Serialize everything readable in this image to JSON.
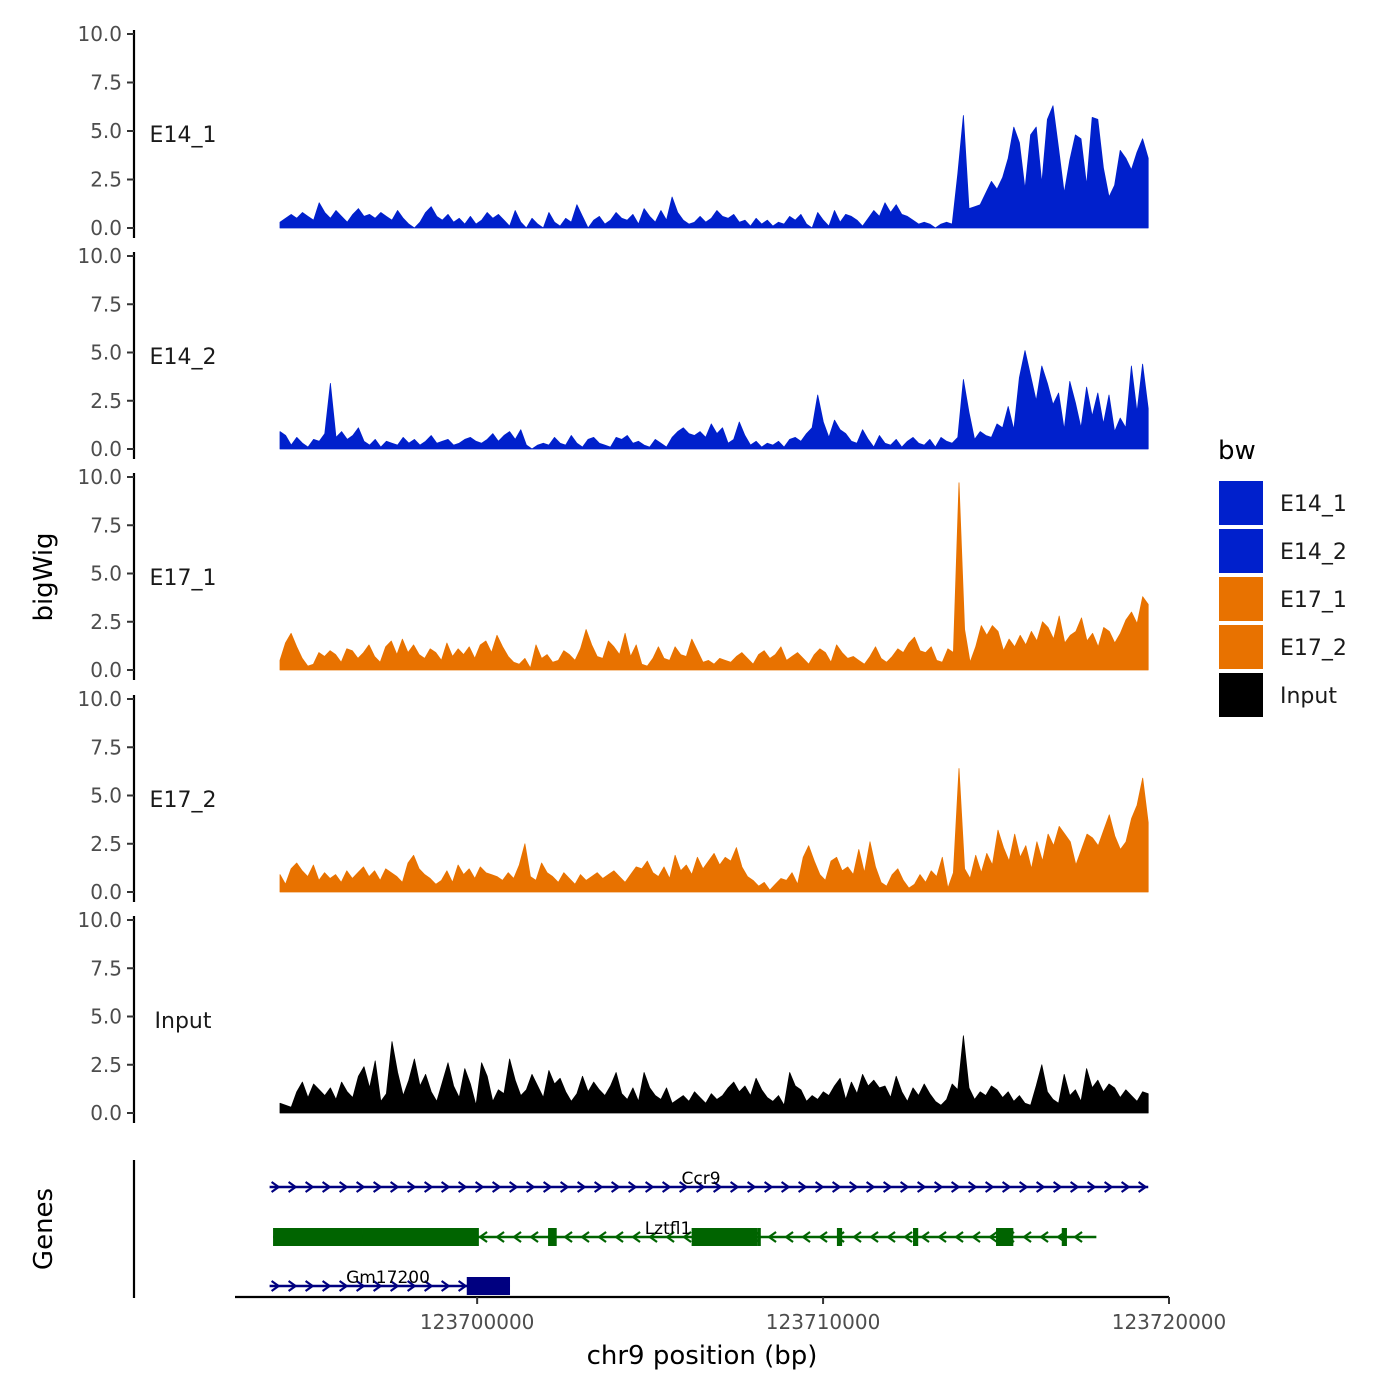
{
  "chart_data": {
    "type": "area",
    "ylabel": "bigWig",
    "xlabel": "chr9 position (bp)",
    "xlim": [
      123693000,
      123720000
    ],
    "x_ticks": [
      "123700000",
      "123710000",
      "123720000"
    ],
    "x_tick_values": [
      123700000,
      123710000,
      123720000
    ],
    "ylim": [
      0,
      10
    ],
    "y_ticks": [
      "0.0",
      "2.5",
      "5.0",
      "7.5",
      "10.0"
    ],
    "y_tick_values": [
      0,
      2.5,
      5,
      7.5,
      10
    ],
    "legend": {
      "title": "bw",
      "position": "right",
      "entries": [
        {
          "name": "E14_1",
          "color": "#0020cc"
        },
        {
          "name": "E14_2",
          "color": "#0020cc"
        },
        {
          "name": "E17_1",
          "color": "#e87200"
        },
        {
          "name": "E17_2",
          "color": "#e87200"
        },
        {
          "name": "Input",
          "color": "#000000"
        }
      ]
    },
    "x_start": 123694300,
    "x_end": 123719400,
    "series": [
      {
        "name": "E14_1",
        "color": "#0020cc",
        "values": [
          0.3,
          0.5,
          0.7,
          0.5,
          0.8,
          0.6,
          0.4,
          1.3,
          0.8,
          0.5,
          0.9,
          0.6,
          0.3,
          0.7,
          1.0,
          0.6,
          0.7,
          0.5,
          0.8,
          0.6,
          0.4,
          0.9,
          0.5,
          0.2,
          0,
          0.3,
          0.8,
          1.1,
          0.6,
          0.4,
          0.7,
          0.3,
          0.5,
          0.2,
          0.6,
          0.2,
          0.4,
          0.8,
          0.5,
          0.7,
          0.4,
          0.1,
          0.9,
          0.3,
          0,
          0.5,
          0.2,
          0,
          0.8,
          0.3,
          0.1,
          0.5,
          0.3,
          1.2,
          0.6,
          0,
          0.4,
          0.6,
          0.2,
          0.4,
          0.8,
          0.5,
          0.4,
          0.7,
          0.2,
          1.0,
          0.6,
          0.3,
          0.9,
          0.4,
          1.6,
          0.8,
          0.4,
          0.2,
          0.3,
          0.6,
          0.3,
          0.5,
          0.9,
          0.6,
          0.5,
          0.7,
          0.3,
          0.4,
          0.1,
          0.5,
          0.2,
          0.4,
          0.1,
          0.3,
          0.2,
          0.6,
          0.4,
          0.7,
          0.2,
          0,
          0.8,
          0.4,
          0.1,
          0.9,
          0.3,
          0.7,
          0.6,
          0.4,
          0.1,
          0.5,
          0.9,
          0.6,
          1.3,
          0.8,
          1.2,
          0.7,
          0.6,
          0.4,
          0.2,
          0.3,
          0.2,
          0,
          0.2,
          0.3,
          0.2,
          2.8,
          5.8,
          1.0,
          1.1,
          1.2,
          1.8,
          2.4,
          2.0,
          2.6,
          3.6,
          5.2,
          4.4,
          2.0,
          4.8,
          5.2,
          2.3,
          5.6,
          6.3,
          4.1,
          1.8,
          3.5,
          4.8,
          4.6,
          2.2,
          5.7,
          5.6,
          3.1,
          1.6,
          2.2,
          4.0,
          3.6,
          3.0,
          3.9,
          4.6,
          3.6
        ]
      },
      {
        "name": "E14_2",
        "color": "#0020cc",
        "values": [
          0.9,
          0.7,
          0.2,
          0.6,
          0.3,
          0.1,
          0.5,
          0.4,
          0.8,
          3.4,
          0.6,
          0.9,
          0.5,
          0.7,
          1.1,
          0.4,
          0.2,
          0.5,
          0.1,
          0.4,
          0.3,
          0.2,
          0.6,
          0.3,
          0.5,
          0.2,
          0.4,
          0.7,
          0.3,
          0.4,
          0.5,
          0.2,
          0.3,
          0.5,
          0.6,
          0.4,
          0.3,
          0.5,
          0.8,
          0.4,
          0.7,
          0.9,
          0.5,
          1.0,
          0.2,
          0,
          0.2,
          0.3,
          0.2,
          0.6,
          0.3,
          0.2,
          0.7,
          0.3,
          0.1,
          0.5,
          0.6,
          0.3,
          0.2,
          0.1,
          0.6,
          0.5,
          0.7,
          0.3,
          0.4,
          0.2,
          0.1,
          0.5,
          0.3,
          0.1,
          0.6,
          0.9,
          1.1,
          0.8,
          0.7,
          0.9,
          0.6,
          1.3,
          0.8,
          1.1,
          0.3,
          0.5,
          1.4,
          0.7,
          0.2,
          0.4,
          0.1,
          0.3,
          0.2,
          0.4,
          0.1,
          0.5,
          0.6,
          0.4,
          0.8,
          1.1,
          2.8,
          1.4,
          0.6,
          1.5,
          1.0,
          0.8,
          0.4,
          0.3,
          1.0,
          0.5,
          0.1,
          0.7,
          0.3,
          0.2,
          0.5,
          0.1,
          0.4,
          0.6,
          0.3,
          0.2,
          0.5,
          0.1,
          0.6,
          0.4,
          0.3,
          0.6,
          3.6,
          1.9,
          0.5,
          0.9,
          0.7,
          0.6,
          1.3,
          1.1,
          2.2,
          1.0,
          3.7,
          5.1,
          3.8,
          2.5,
          4.3,
          3.4,
          2.3,
          2.9,
          1.0,
          3.5,
          2.4,
          1.1,
          3.2,
          1.7,
          2.9,
          1.3,
          2.8,
          0.9,
          1.6,
          1.1,
          4.3,
          1.9,
          4.4,
          2.1
        ]
      },
      {
        "name": "E17_1",
        "color": "#e87200",
        "values": [
          0.5,
          1.4,
          1.9,
          1.2,
          0.6,
          0.2,
          0.3,
          0.9,
          0.7,
          1.0,
          0.8,
          0.4,
          1.1,
          1.0,
          0.6,
          0.9,
          1.3,
          0.7,
          0.4,
          1.2,
          1.5,
          0.8,
          1.6,
          0.9,
          1.3,
          0.8,
          0.6,
          1.1,
          0.9,
          0.5,
          1.4,
          0.7,
          1.1,
          0.8,
          1.2,
          0.6,
          1.3,
          1.5,
          0.9,
          1.8,
          1.2,
          0.7,
          0.4,
          0.3,
          0.6,
          0.1,
          1.3,
          0.6,
          0.8,
          0.4,
          0.5,
          1.0,
          0.8,
          0.5,
          1.1,
          2.1,
          1.3,
          0.7,
          0.6,
          1.5,
          1.2,
          0.8,
          1.9,
          0.7,
          1.3,
          0.3,
          0.2,
          0.6,
          1.2,
          0.6,
          0.5,
          1.2,
          0.8,
          0.7,
          1.6,
          1.0,
          0.4,
          0.5,
          0.3,
          0.6,
          0.5,
          0.4,
          0.7,
          0.9,
          0.6,
          0.3,
          0.8,
          1.0,
          0.6,
          0.8,
          1.2,
          0.5,
          0.7,
          0.9,
          0.6,
          0.3,
          0.8,
          1.1,
          0.9,
          0.4,
          1.3,
          0.9,
          0.6,
          0.7,
          0.5,
          0.3,
          0.7,
          1.2,
          0.6,
          0.4,
          0.7,
          1.1,
          0.9,
          1.4,
          1.7,
          1.0,
          0.9,
          1.2,
          0.5,
          0.4,
          1.1,
          0.9,
          9.7,
          2.1,
          0.4,
          1.2,
          2.3,
          1.8,
          2.3,
          2.0,
          1.0,
          1.6,
          1.2,
          1.8,
          1.3,
          2.0,
          1.5,
          2.5,
          2.2,
          1.6,
          2.8,
          1.4,
          1.8,
          2.0,
          2.7,
          1.5,
          1.9,
          1.2,
          2.2,
          2.0,
          1.4,
          1.9,
          2.6,
          3.0,
          2.4,
          3.8,
          3.4
        ]
      },
      {
        "name": "E17_2",
        "color": "#e87200",
        "values": [
          0.9,
          0.4,
          1.2,
          1.5,
          1.1,
          0.8,
          1.4,
          0.6,
          1.0,
          0.7,
          0.9,
          0.5,
          1.1,
          0.7,
          1.0,
          1.3,
          0.8,
          1.1,
          0.6,
          1.2,
          1.0,
          0.8,
          0.5,
          1.5,
          1.9,
          1.2,
          0.9,
          0.7,
          0.4,
          0.6,
          1.1,
          0.5,
          1.4,
          0.9,
          1.2,
          0.7,
          1.3,
          1.0,
          0.9,
          0.8,
          0.6,
          1.0,
          0.7,
          1.4,
          2.5,
          0.8,
          0.6,
          1.5,
          1.0,
          0.8,
          0.5,
          1.0,
          0.7,
          0.4,
          0.9,
          0.6,
          0.8,
          1.0,
          0.7,
          0.9,
          1.1,
          0.8,
          0.5,
          0.9,
          1.3,
          1.2,
          1.6,
          1.0,
          0.8,
          1.3,
          0.7,
          1.9,
          1.1,
          1.4,
          0.9,
          1.8,
          1.2,
          1.6,
          2.0,
          1.4,
          1.8,
          1.6,
          2.3,
          1.3,
          0.8,
          0.6,
          0.3,
          0.5,
          0.1,
          0.4,
          0.7,
          0.6,
          1.0,
          0.4,
          1.8,
          2.4,
          1.6,
          0.9,
          0.6,
          1.6,
          1.8,
          1.1,
          1.3,
          0.9,
          2.2,
          1.0,
          2.6,
          1.3,
          0.5,
          0.3,
          0.9,
          1.2,
          0.6,
          0.2,
          0.4,
          0.9,
          0.5,
          1.1,
          0.8,
          1.8,
          0.2,
          1.0,
          6.4,
          1.2,
          0.7,
          1.9,
          1.0,
          2.0,
          1.4,
          3.2,
          2.3,
          1.6,
          3.0,
          1.8,
          2.4,
          1.2,
          2.6,
          1.6,
          3.0,
          2.4,
          3.4,
          3.0,
          2.6,
          1.4,
          2.2,
          3.0,
          2.8,
          2.4,
          3.2,
          4.0,
          2.9,
          2.2,
          2.6,
          3.8,
          4.5,
          5.9,
          3.6
        ]
      },
      {
        "name": "Input",
        "color": "#000000",
        "values": [
          0.5,
          0.4,
          0.3,
          1.1,
          1.6,
          0.8,
          1.5,
          1.2,
          0.9,
          1.3,
          0.7,
          1.6,
          1.1,
          0.8,
          1.9,
          2.4,
          1.3,
          2.7,
          0.6,
          1.0,
          3.7,
          2.1,
          0.9,
          1.7,
          2.8,
          1.4,
          2.0,
          1.1,
          0.6,
          1.6,
          2.6,
          1.4,
          0.8,
          2.3,
          1.5,
          0.4,
          2.6,
          1.9,
          0.6,
          1.2,
          1.0,
          2.8,
          1.7,
          0.9,
          1.2,
          2.0,
          1.4,
          0.8,
          2.2,
          1.5,
          1.8,
          1.1,
          0.6,
          1.0,
          1.9,
          1.1,
          1.6,
          1.2,
          0.9,
          1.4,
          2.1,
          1.0,
          0.7,
          1.3,
          0.6,
          2.1,
          1.3,
          0.9,
          0.7,
          1.3,
          0.5,
          0.7,
          0.9,
          0.6,
          1.1,
          0.8,
          0.5,
          1.0,
          0.7,
          0.9,
          1.3,
          1.6,
          1.1,
          1.4,
          0.9,
          1.8,
          1.2,
          0.8,
          0.6,
          0.9,
          0.4,
          2.1,
          1.4,
          1.2,
          0.6,
          0.9,
          0.7,
          1.1,
          0.9,
          1.4,
          1.8,
          0.7,
          1.6,
          1.0,
          2.0,
          1.4,
          1.7,
          1.3,
          1.4,
          0.8,
          1.9,
          1.1,
          0.6,
          1.3,
          0.9,
          1.5,
          1.0,
          0.6,
          0.4,
          0.7,
          1.5,
          1.2,
          4.0,
          1.3,
          0.7,
          1.1,
          0.9,
          1.4,
          1.2,
          0.8,
          1.1,
          0.6,
          0.9,
          0.5,
          0.4,
          1.4,
          2.5,
          1.1,
          0.7,
          0.5,
          2.0,
          0.9,
          1.2,
          0.6,
          2.3,
          1.3,
          1.7,
          1.1,
          1.5,
          1.3,
          0.8,
          1.2,
          0.9,
          0.6,
          1.1,
          1.0
        ]
      }
    ],
    "genes": {
      "label": "Genes",
      "items": [
        {
          "name": "Ccr9",
          "strand": "+",
          "start": 123694000,
          "end": 123719400,
          "color": "#000080",
          "exons": []
        },
        {
          "name": "Lztfl1",
          "strand": "-",
          "start": 123694100,
          "end": 123717900,
          "color": "#006400",
          "exons": [
            [
              123694100,
              123696700
            ],
            [
              123696700,
              123700050
            ],
            [
              123702050,
              123702300
            ],
            [
              123706200,
              123708100
            ],
            [
              123708100,
              123708200
            ],
            [
              123710400,
              123710550
            ],
            [
              123712600,
              123712750
            ],
            [
              123715000,
              123715500
            ],
            [
              123716900,
              123717050
            ]
          ]
        },
        {
          "name": "Gm17200",
          "strand": "+",
          "start": 123694000,
          "end": 123700950,
          "color": "#000080",
          "exons": [
            [
              123699700,
              123700950
            ]
          ]
        }
      ]
    }
  }
}
